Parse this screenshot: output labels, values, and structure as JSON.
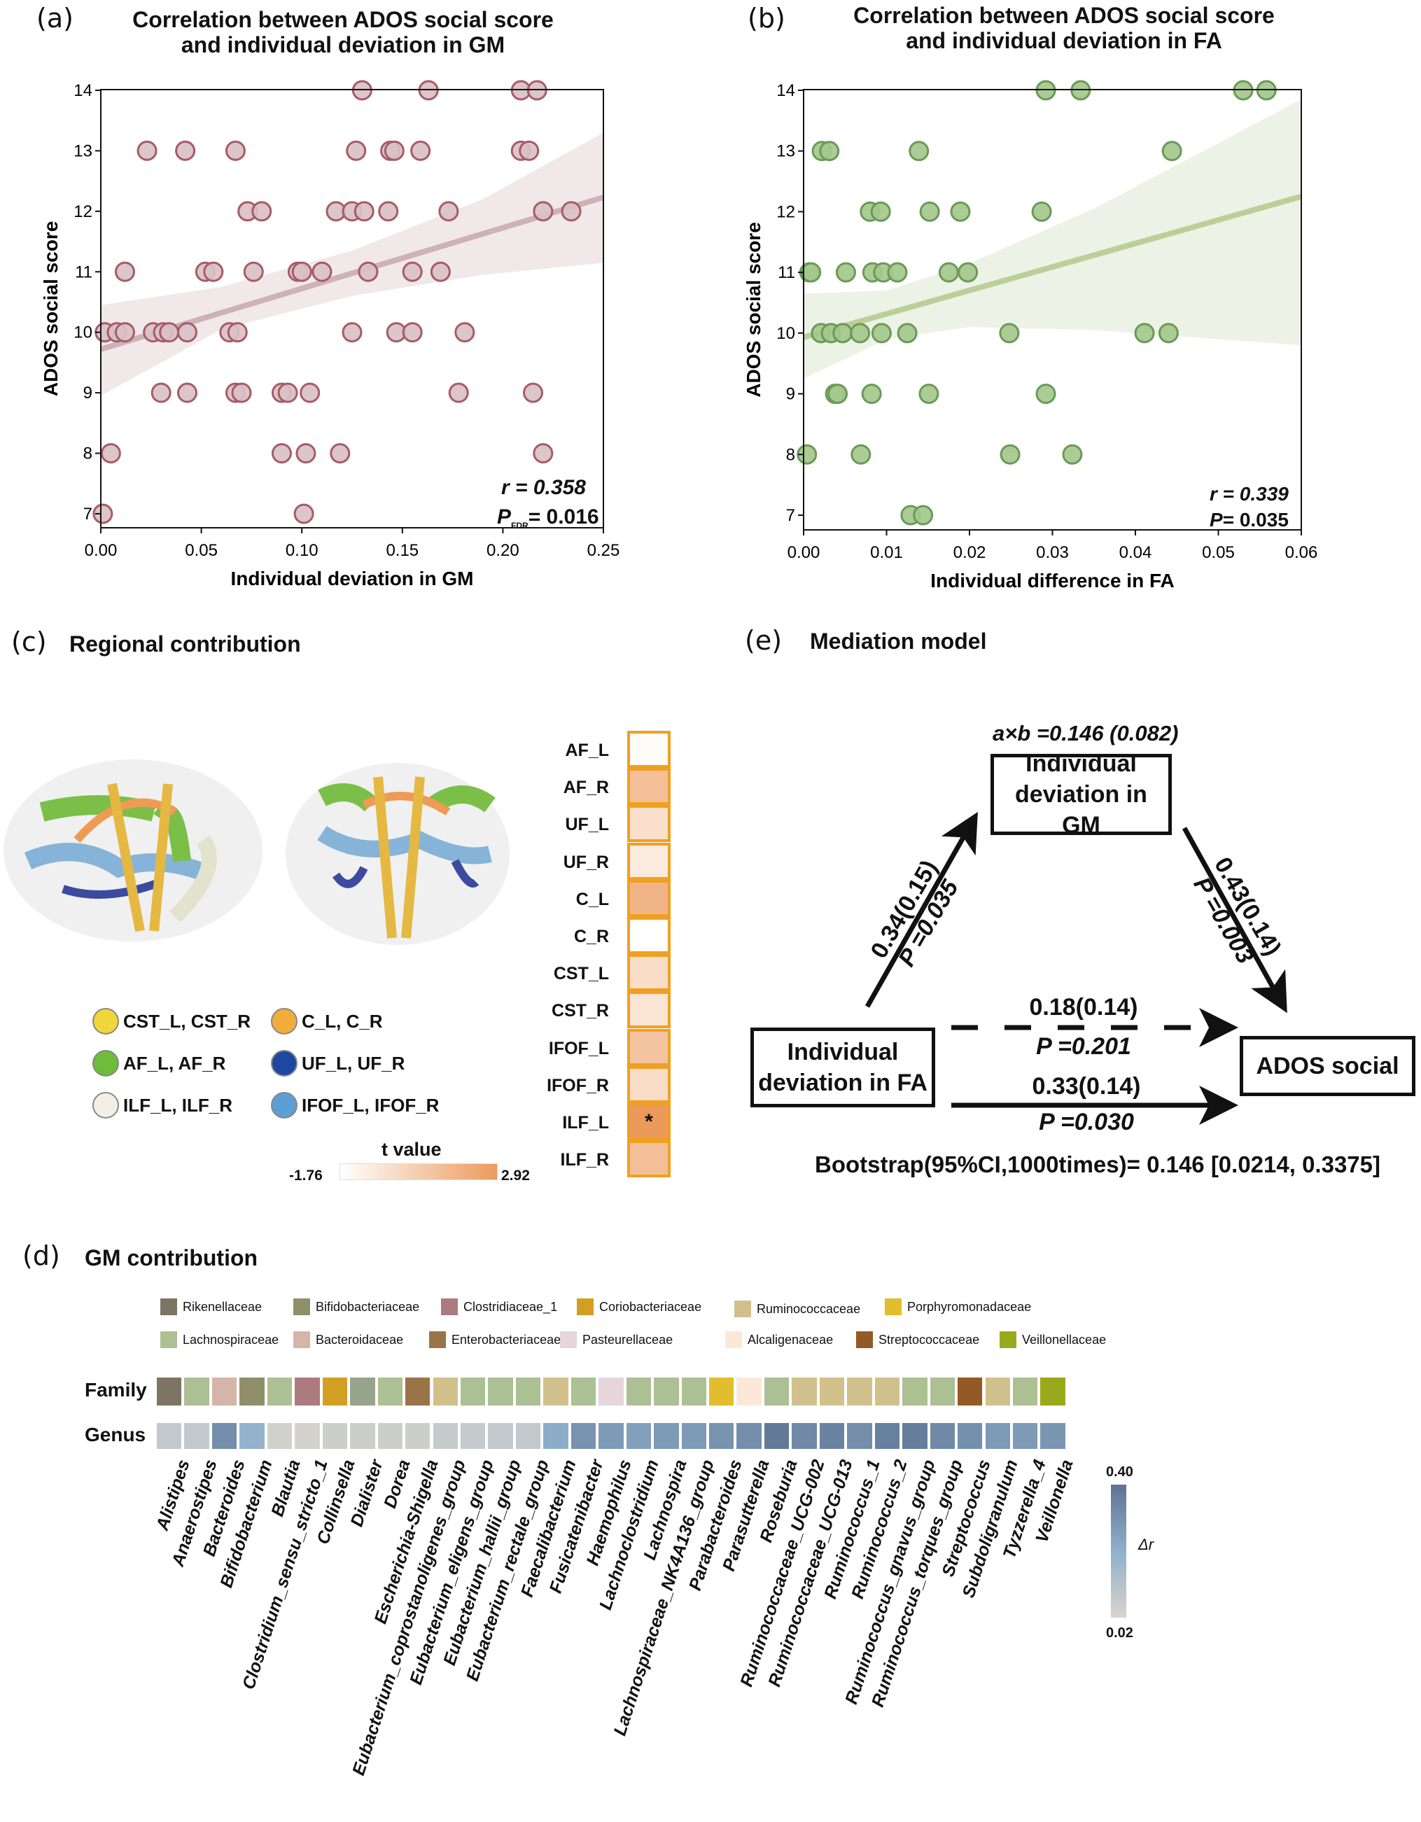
{
  "panel_a": {
    "letter": "(a)",
    "title_line1": "Correlation between ADOS social score",
    "title_line2": "and individual deviation in GM",
    "r_text": "r = 0.358",
    "p_text": "= 0.016",
    "p_label": "P",
    "p_sub": "FDR"
  },
  "panel_b": {
    "letter": "(b)",
    "title_line1": "Correlation between ADOS social score",
    "title_line2": "and individual deviation in FA",
    "r_text": "r = 0.339",
    "p_text": "= 0.035",
    "p_label": "P"
  },
  "panel_c": {
    "letter": "(c)",
    "title": "Regional contribution",
    "legend": [
      {
        "label": "CST_L, CST_R",
        "color": "#f0d63a"
      },
      {
        "label": "C_L, C_R",
        "color": "#f2ac3b"
      },
      {
        "label": "AF_L, AF_R",
        "color": "#6fbb3c"
      },
      {
        "label": "UF_L, UF_R",
        "color": "#1d47a0"
      },
      {
        "label": "ILF_L, ILF_R",
        "color": "#f2f0e4"
      },
      {
        "label": "IFOF_L, IFOF_R",
        "color": "#5b9fd6"
      }
    ],
    "colorbar": {
      "title": "t value",
      "min_label": "-1.76",
      "max_label": "2.92"
    }
  },
  "panel_d": {
    "letter": "(d)",
    "title": "GM contribution",
    "family_row_label": "Family",
    "genus_row_label": "Genus",
    "family_legend": [
      {
        "name": "Rikenellaceae",
        "color": "#7d7563"
      },
      {
        "name": "Bifidobacteriaceae",
        "color": "#8f906a"
      },
      {
        "name": "Clostridiaceae_1",
        "color": "#ad7a80"
      },
      {
        "name": "Coriobacteriaceae",
        "color": "#d39f23"
      },
      {
        "name": "Ruminococcaceae",
        "color": "#d2c08c"
      },
      {
        "name": "Porphyromonadaceae",
        "color": "#e2bd2e"
      },
      {
        "name": "Lachnospiraceae",
        "color": "#acc093"
      },
      {
        "name": "Bacteroidaceae",
        "color": "#d4b5a8"
      },
      {
        "name": "Enterobacteriaceae",
        "color": "#9b7349"
      },
      {
        "name": "Pasteurellaceae",
        "color": "#e6d5da"
      },
      {
        "name": "Alcaligenaceae",
        "color": "#fbe9d7"
      },
      {
        "name": "Streptococcaceae",
        "color": "#945a25"
      },
      {
        "name": "Veillonellaceae",
        "color": "#99a91c"
      }
    ],
    "colorbar": {
      "max_label": "0.40",
      "min_label": "0.02",
      "title": "Δr"
    }
  },
  "panel_e": {
    "letter": "(e)",
    "title": "Mediation model",
    "indirect": "a×b =0.146 (0.082)",
    "mediator": [
      "Individual",
      "deviation in GM"
    ],
    "predictor": [
      "Individual",
      "deviation in FA"
    ],
    "outcome": "ADOS social",
    "path_a": {
      "coef": "0.34(0.15)",
      "p": "P =0.035"
    },
    "path_b": {
      "coef": "0.43(0.14)",
      "p": "P =0.003"
    },
    "path_c_prime": {
      "coef": "0.18(0.14)",
      "p": "P =0.201"
    },
    "path_c": {
      "coef": "0.33(0.14)",
      "p": "P =0.030"
    },
    "bootstrap": "Bootstrap(95%CI,1000times)= 0.146 [0.0214, 0.3375]"
  },
  "chart_data": [
    {
      "id": "a",
      "type": "scatter",
      "xlabel": "Individual deviation in GM",
      "ylabel": "ADOS social score",
      "xlim": [
        0,
        0.25
      ],
      "ylim": [
        6.65,
        14
      ],
      "xticks": [
        "0.00",
        "0.05",
        "0.10",
        "0.15",
        "0.20",
        "0.25"
      ],
      "yticks": [
        "7",
        "8",
        "9",
        "10",
        "11",
        "12",
        "13",
        "14"
      ],
      "fill": "#d9c0c7",
      "stroke": "#a65c66",
      "line_color": "#cfb1b8",
      "band_color": "#f1e8ea",
      "fit": {
        "x": [
          0,
          0.25
        ],
        "y": [
          9.72,
          12.23
        ]
      },
      "ci": {
        "x": [
          0,
          0.06,
          0.125,
          0.19,
          0.25
        ],
        "lower": [
          8.95,
          10.05,
          10.6,
          10.95,
          11.15
        ],
        "upper": [
          10.45,
          10.75,
          11.35,
          12.2,
          13.3
        ]
      },
      "points": [
        [
          0.13,
          14
        ],
        [
          0.163,
          14
        ],
        [
          0.209,
          14
        ],
        [
          0.217,
          14
        ],
        [
          0.023,
          13
        ],
        [
          0.042,
          13
        ],
        [
          0.067,
          13
        ],
        [
          0.127,
          13
        ],
        [
          0.144,
          13
        ],
        [
          0.146,
          13
        ],
        [
          0.159,
          13
        ],
        [
          0.209,
          13
        ],
        [
          0.213,
          13
        ],
        [
          0.073,
          12
        ],
        [
          0.08,
          12
        ],
        [
          0.117,
          12
        ],
        [
          0.125,
          12
        ],
        [
          0.131,
          12
        ],
        [
          0.143,
          12
        ],
        [
          0.173,
          12
        ],
        [
          0.22,
          12
        ],
        [
          0.234,
          12
        ],
        [
          0.012,
          11
        ],
        [
          0.052,
          11
        ],
        [
          0.056,
          11
        ],
        [
          0.076,
          11
        ],
        [
          0.098,
          11
        ],
        [
          0.1,
          11
        ],
        [
          0.11,
          11
        ],
        [
          0.133,
          11
        ],
        [
          0.155,
          11
        ],
        [
          0.169,
          11
        ],
        [
          0.002,
          10
        ],
        [
          0.008,
          10
        ],
        [
          0.012,
          10
        ],
        [
          0.026,
          10
        ],
        [
          0.031,
          10
        ],
        [
          0.034,
          10
        ],
        [
          0.043,
          10
        ],
        [
          0.064,
          10
        ],
        [
          0.068,
          10
        ],
        [
          0.125,
          10
        ],
        [
          0.147,
          10
        ],
        [
          0.155,
          10
        ],
        [
          0.181,
          10
        ],
        [
          0.03,
          9
        ],
        [
          0.043,
          9
        ],
        [
          0.067,
          9
        ],
        [
          0.07,
          9
        ],
        [
          0.09,
          9
        ],
        [
          0.093,
          9
        ],
        [
          0.104,
          9
        ],
        [
          0.178,
          9
        ],
        [
          0.215,
          9
        ],
        [
          0.005,
          8
        ],
        [
          0.09,
          8
        ],
        [
          0.102,
          8
        ],
        [
          0.119,
          8
        ],
        [
          0.22,
          8
        ],
        [
          0.001,
          7
        ],
        [
          0.101,
          7
        ]
      ]
    },
    {
      "id": "b",
      "type": "scatter",
      "xlabel": "Individual difference in FA",
      "ylabel": "ADOS social score",
      "xlim": [
        0,
        0.06
      ],
      "ylim": [
        6.65,
        14
      ],
      "xticks": [
        "0.00",
        "0.01",
        "0.02",
        "0.03",
        "0.04",
        "0.05",
        "0.06"
      ],
      "yticks": [
        "7",
        "8",
        "9",
        "10",
        "11",
        "12",
        "13",
        "14"
      ],
      "fill": "#a4c88c",
      "stroke": "#6a9a58",
      "line_color": "#bccf99",
      "band_color": "#edf2e6",
      "fit": {
        "x": [
          0,
          0.06
        ],
        "y": [
          9.93,
          12.25
        ]
      },
      "ci": {
        "x": [
          0,
          0.01,
          0.02,
          0.035,
          0.06
        ],
        "lower": [
          9.25,
          9.9,
          10.1,
          10.05,
          9.8
        ],
        "upper": [
          10.65,
          10.7,
          11.15,
          12.05,
          13.85
        ]
      },
      "points": [
        [
          0.0292,
          14
        ],
        [
          0.0334,
          14
        ],
        [
          0.053,
          14
        ],
        [
          0.0558,
          14
        ],
        [
          0.0022,
          13
        ],
        [
          0.0031,
          13
        ],
        [
          0.0139,
          13
        ],
        [
          0.0444,
          13
        ],
        [
          0.008,
          12
        ],
        [
          0.0093,
          12
        ],
        [
          0.0152,
          12
        ],
        [
          0.0189,
          12
        ],
        [
          0.0287,
          12
        ],
        [
          0.0007,
          11
        ],
        [
          0.0009,
          11
        ],
        [
          0.0051,
          11
        ],
        [
          0.0083,
          11
        ],
        [
          0.0096,
          11
        ],
        [
          0.0113,
          11
        ],
        [
          0.0175,
          11
        ],
        [
          0.0198,
          11
        ],
        [
          0.0021,
          10
        ],
        [
          0.0033,
          10
        ],
        [
          0.0047,
          10
        ],
        [
          0.0068,
          10
        ],
        [
          0.0094,
          10
        ],
        [
          0.0125,
          10
        ],
        [
          0.0248,
          10
        ],
        [
          0.0411,
          10
        ],
        [
          0.044,
          10
        ],
        [
          0.0038,
          9
        ],
        [
          0.0041,
          9
        ],
        [
          0.0082,
          9
        ],
        [
          0.0151,
          9
        ],
        [
          0.0292,
          9
        ],
        [
          0.0004,
          8
        ],
        [
          0.0069,
          8
        ],
        [
          0.0249,
          8
        ],
        [
          0.0324,
          8
        ],
        [
          0.0129,
          7
        ],
        [
          0.0144,
          7
        ]
      ]
    },
    {
      "id": "c",
      "type": "heatmap",
      "title": "Regional contribution",
      "value_label": "t value",
      "range": [
        -1.76,
        2.92
      ],
      "rows": [
        "AF_L",
        "AF_R",
        "UF_L",
        "UF_R",
        "C_L",
        "C_R",
        "CST_L",
        "CST_R",
        "IFOF_L",
        "IFOF_R",
        "ILF_L",
        "ILF_R"
      ],
      "values": [
        -1.6,
        1.2,
        -0.3,
        -0.8,
        1.7,
        -1.76,
        -0.2,
        -0.5,
        1.0,
        -0.2,
        2.92,
        1.2
      ],
      "annotations": [
        "",
        "",
        "",
        "",
        "",
        "",
        "",
        "",
        "",
        "",
        "*",
        ""
      ],
      "low_color": "#ffffff",
      "high_color": "#ec9a5c",
      "border_color": "#f0a020"
    },
    {
      "id": "d",
      "type": "heatmap",
      "title": "GM contribution",
      "value_label": "Δr",
      "range": [
        0.02,
        0.4
      ],
      "genera": [
        "Alistipes",
        "Anaerostipes",
        "Bacteroides",
        "Bifidobacterium",
        "Blautia",
        "Clostridium_sensu_stricto_1",
        "Collinsella",
        "Dialister",
        "Dorea",
        "Escherichia-Shigella",
        "Eubacterium_coprostanoligenes_group",
        "Eubacterium_eligens_group",
        "Eubacterium_hallii_group",
        "Eubacterium_rectale_group",
        "Faecalibacterium",
        "Fusicatenibacter",
        "Haemophilus",
        "Lachnoclostridium",
        "Lachnospira",
        "Lachnospiraceae_NK4A136_group",
        "Parabacteroides",
        "Parasutterella",
        "Roseburia",
        "Ruminococcaceae_UCG-002",
        "Ruminococcaceae_UCG-013",
        "Ruminococcus_1",
        "Ruminococcus_2",
        "Ruminococcus_gnavus_group",
        "Ruminococcus_torques_group",
        "Streptococcus",
        "Subdoligranulum",
        "Tyzzerella_4",
        "Veillonella"
      ],
      "family_colors": [
        "#7d7563",
        "#acc093",
        "#d4b5a8",
        "#8f906a",
        "#acc093",
        "#ad7a80",
        "#d39f23",
        "#98a28d",
        "#acc093",
        "#9b7349",
        "#d2c08c",
        "#acc093",
        "#acc093",
        "#acc093",
        "#d2c08c",
        "#acc093",
        "#e6d5da",
        "#acc093",
        "#acc093",
        "#acc093",
        "#e2bd2e",
        "#fbe9d7",
        "#acc093",
        "#d2c08c",
        "#d2c08c",
        "#d2c08c",
        "#d2c08c",
        "#acc093",
        "#acc093",
        "#945a25",
        "#d2c08c",
        "#acc093",
        "#99a91c"
      ],
      "delta_r": [
        0.08,
        0.08,
        0.32,
        0.2,
        0.04,
        0.03,
        0.05,
        0.05,
        0.05,
        0.05,
        0.07,
        0.07,
        0.08,
        0.08,
        0.22,
        0.3,
        0.28,
        0.26,
        0.28,
        0.28,
        0.3,
        0.32,
        0.38,
        0.33,
        0.35,
        0.32,
        0.36,
        0.37,
        0.33,
        0.31,
        0.28,
        0.28,
        0.29
      ],
      "low_color": "#d8d4cc",
      "mid_color": "#8fb0cb",
      "high_color": "#5e7393"
    }
  ]
}
